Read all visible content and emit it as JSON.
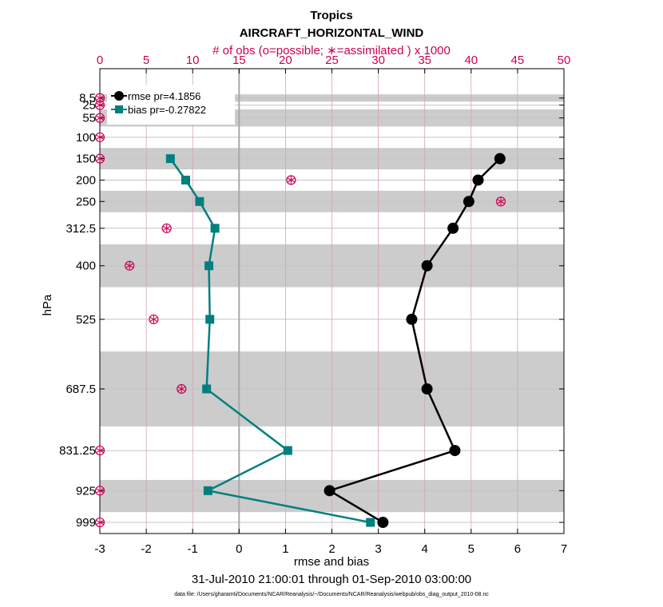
{
  "chart_data": {
    "type": "line",
    "title": "Tropics",
    "subtitle": "AIRCRAFT_HORIZONTAL_WIND",
    "top_axis_label": "# of obs (o=possible; ∗=assimilated ) x 1000",
    "xlabel": "rmse and bias",
    "date_range": "31-Jul-2010 21:00:01 through 01-Sep-2010 03:00:00",
    "footnote": "data file: /Users/gharamti/Documents/NCAR/Reanalysis/~/Documents/NCAR/Reanalysis/webpub/obs_diag_output_2010-08.nc",
    "ylabel": "hPa",
    "xlim": [
      -3,
      7
    ],
    "xticks": [
      -3,
      -2,
      -1,
      0,
      1,
      2,
      3,
      4,
      5,
      6,
      7
    ],
    "xtick_labels": [
      "-3",
      "-2",
      "-1",
      "0",
      "1",
      "2",
      "3",
      "4",
      "5",
      "6",
      "7"
    ],
    "top_xlim": [
      0,
      50
    ],
    "top_xticks": [
      0,
      5,
      10,
      15,
      20,
      25,
      30,
      35,
      40,
      45,
      50
    ],
    "top_xtick_labels": [
      "0",
      "5",
      "10",
      "15",
      "20",
      "25",
      "30",
      "35",
      "40",
      "45",
      "50"
    ],
    "ylim": [
      1025,
      -60
    ],
    "levels": [
      8.5,
      25,
      55,
      100,
      150,
      200,
      250,
      312.5,
      400,
      525,
      687.5,
      831.25,
      925,
      999
    ],
    "level_labels": [
      "8.5",
      "25",
      "55",
      "100",
      "150",
      "200",
      "250",
      "312.5",
      "400",
      "525",
      "687.5",
      "831.25",
      "925",
      "999"
    ],
    "shaded_bands": [
      [
        0,
        17
      ],
      [
        35,
        75
      ],
      [
        125,
        175
      ],
      [
        225,
        275
      ],
      [
        350,
        450
      ],
      [
        600,
        775
      ],
      [
        900,
        975
      ]
    ],
    "series": [
      {
        "name": "rmse pr=4.1856",
        "color": "#000000",
        "marker": "circle",
        "levels": [
          150,
          200,
          250,
          312.5,
          400,
          525,
          687.5,
          831.25,
          925,
          999
        ],
        "values": [
          5.62,
          5.15,
          4.95,
          4.61,
          4.05,
          3.72,
          4.05,
          4.65,
          1.95,
          3.1
        ]
      },
      {
        "name": "bias pr=-0.27822",
        "color": "#007f7f",
        "marker": "square",
        "levels": [
          150,
          200,
          250,
          312.5,
          400,
          525,
          687.5,
          831.25,
          925,
          999
        ],
        "values": [
          -1.48,
          -1.15,
          -0.85,
          -0.52,
          -0.65,
          -0.63,
          -0.7,
          1.05,
          -0.67,
          2.83
        ]
      }
    ],
    "obs_counts": {
      "color": "#cc0055",
      "levels": [
        8.5,
        25,
        55,
        100,
        150,
        200,
        250,
        312.5,
        400,
        525,
        687.5,
        831.25,
        925,
        999
      ],
      "possible": [
        0,
        0,
        0,
        0,
        0,
        20.6,
        43.2,
        7.2,
        3.2,
        5.8,
        8.8,
        0,
        0,
        0
      ],
      "assimilated": [
        0,
        0,
        0,
        0,
        0,
        20.6,
        43.2,
        7.2,
        3.2,
        5.8,
        8.8,
        0,
        0,
        0
      ]
    },
    "zero_line": 0,
    "grid": true,
    "legend": "top-left"
  }
}
